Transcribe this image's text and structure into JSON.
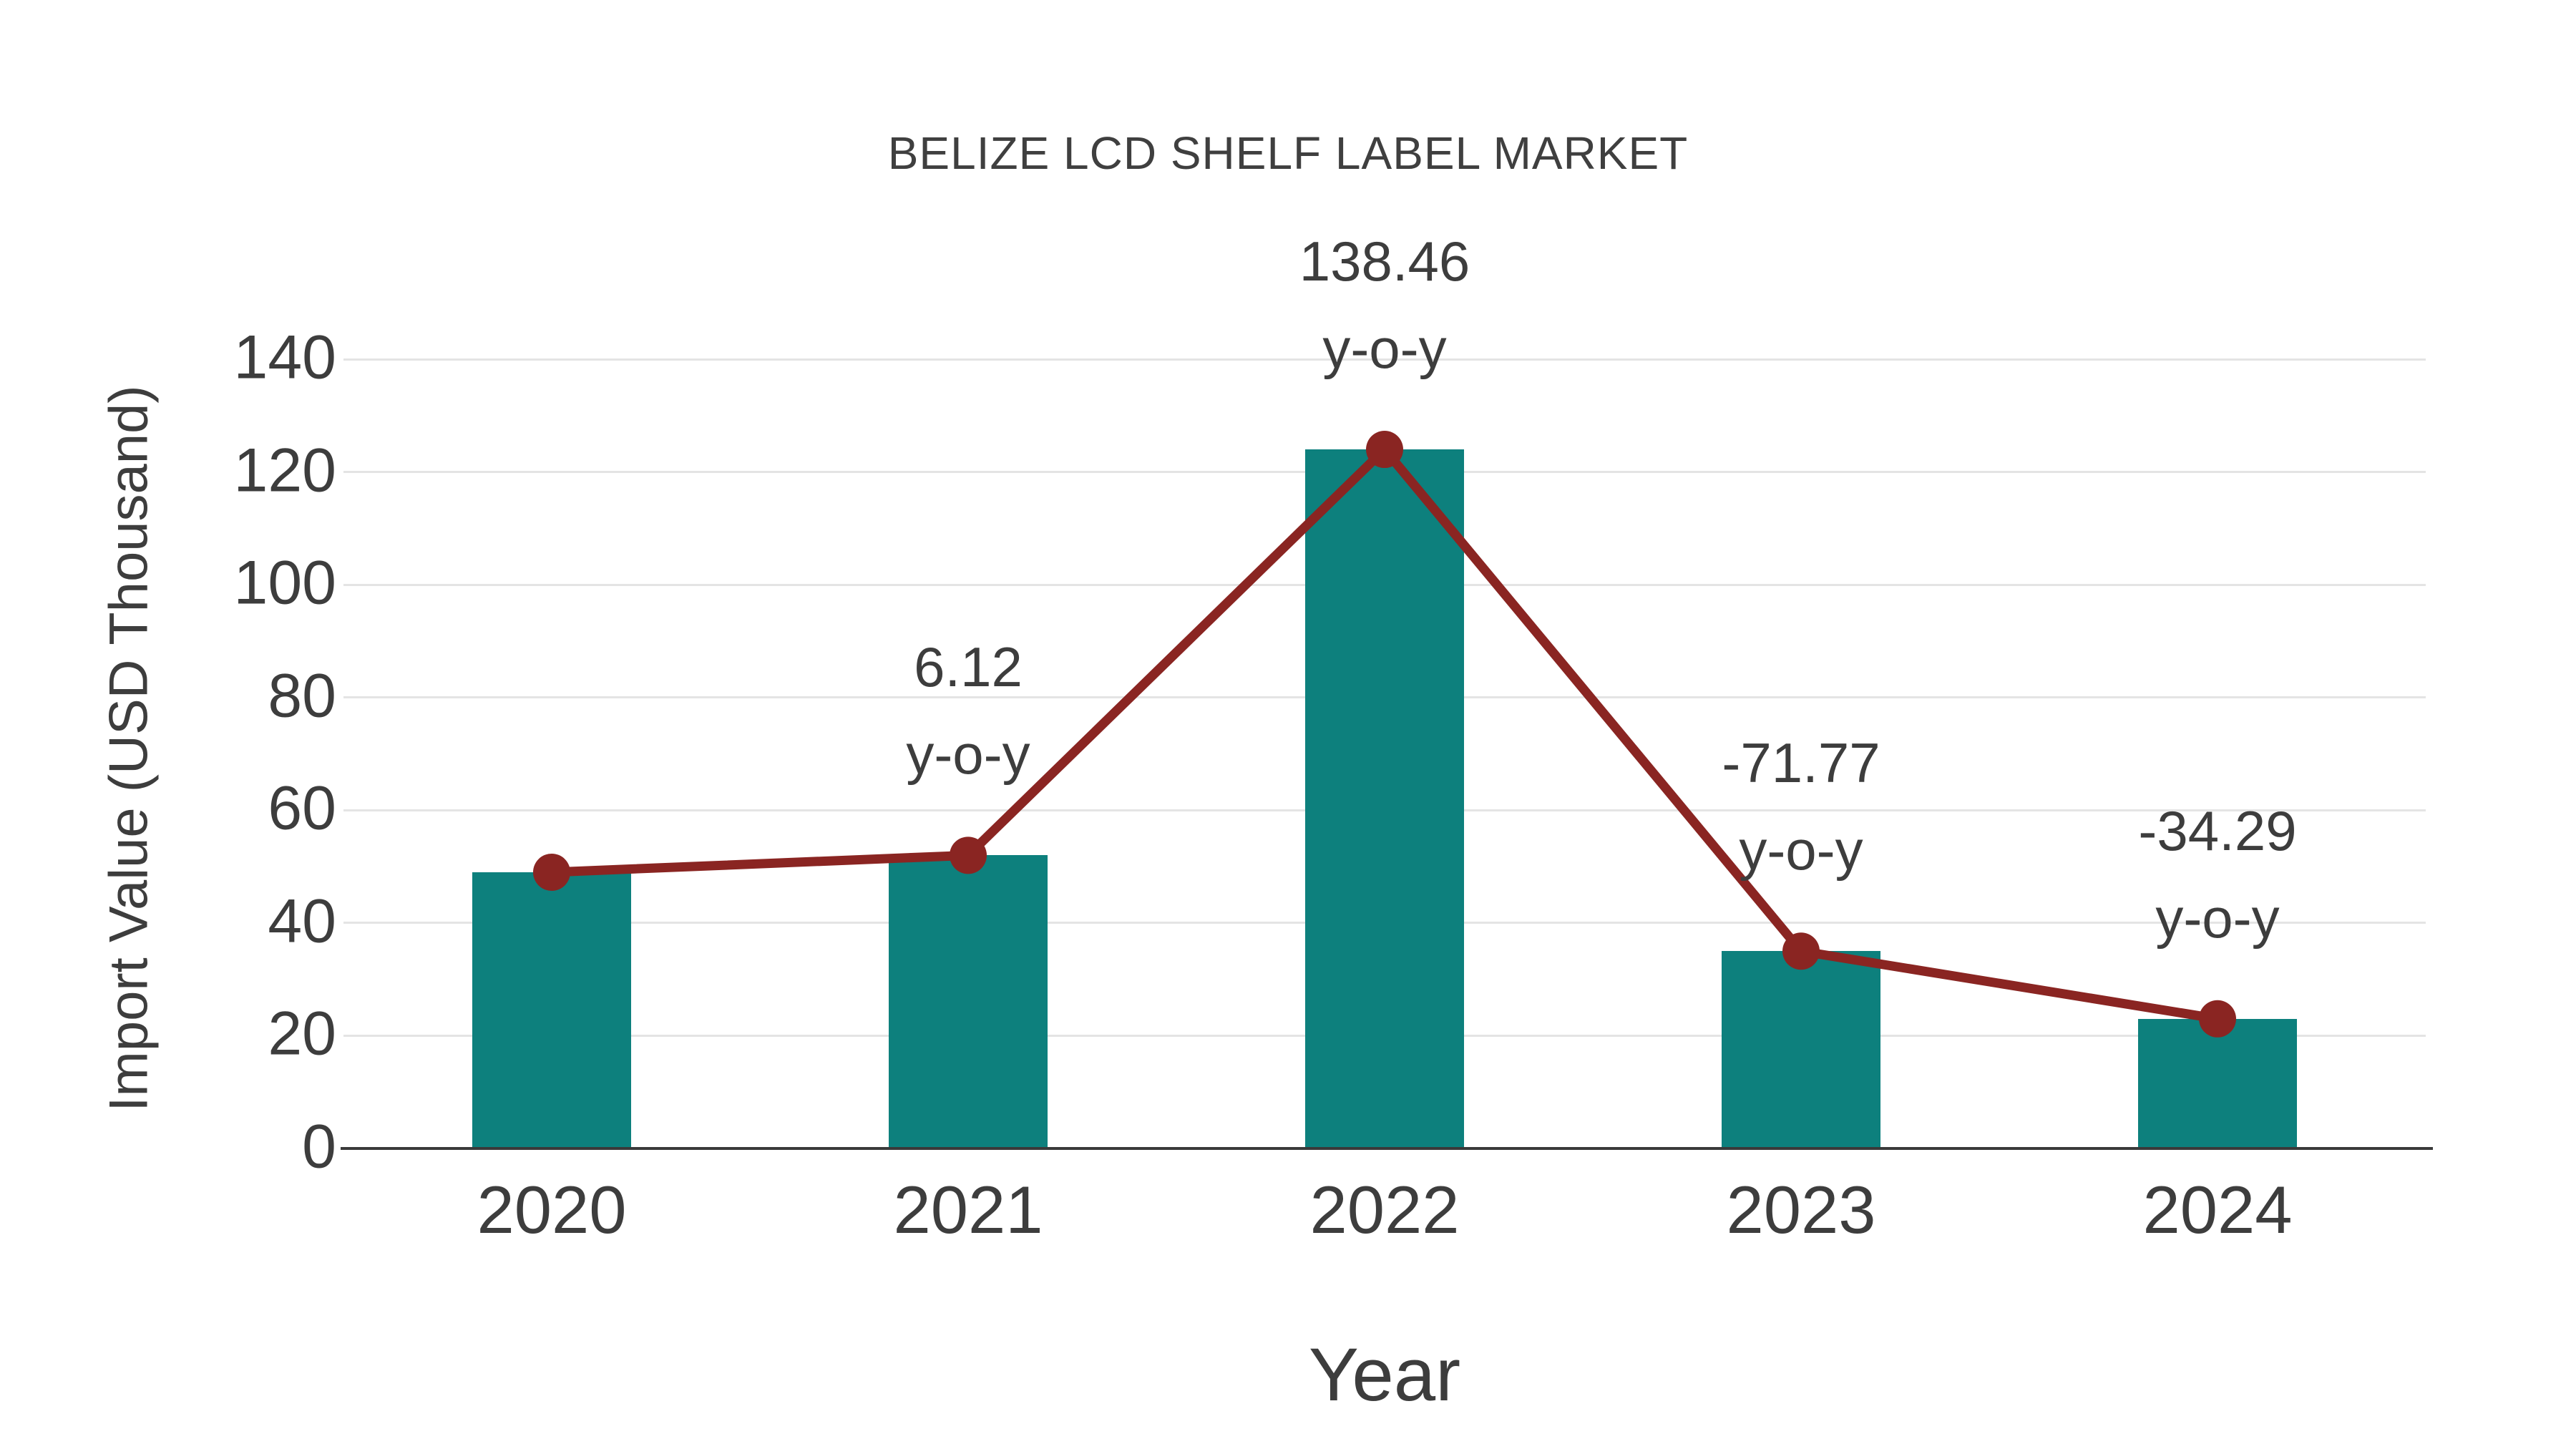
{
  "title": "BELIZE LCD SHELF LABEL MARKET",
  "chart_data": {
    "type": "bar",
    "title": "BELIZE LCD SHELF LABEL MARKET",
    "xlabel": "Year",
    "ylabel": "Import Value (USD Thousand)",
    "categories": [
      "2020",
      "2021",
      "2022",
      "2023",
      "2024"
    ],
    "series": [
      {
        "name": "Import Value bars",
        "type": "bar",
        "values": [
          49,
          52,
          124,
          35,
          23
        ]
      },
      {
        "name": "Import Value trend line",
        "type": "line",
        "values": [
          49,
          52,
          124,
          35,
          23
        ]
      }
    ],
    "annotations": [
      {
        "category": "2021",
        "line1": "6.12",
        "line2": "y-o-y"
      },
      {
        "category": "2022",
        "line1": "138.46",
        "line2": "y-o-y"
      },
      {
        "category": "2023",
        "line1": "-71.77",
        "line2": "y-o-y"
      },
      {
        "category": "2024",
        "line1": "-34.29",
        "line2": "y-o-y"
      }
    ],
    "yticks": [
      0,
      20,
      40,
      60,
      80,
      100,
      120,
      140
    ],
    "ylim": [
      0,
      140
    ],
    "grid": true,
    "legend": false
  },
  "colors": {
    "bar_fill": "#0d807d",
    "line_stroke": "#8a2522",
    "marker_fill": "#8a2522",
    "gridline": "#e4e4e4",
    "axis_line": "#3a3a3a",
    "tick_text": "#3d3d3d",
    "title_text": "#3f3f3f",
    "background": "#ffffff"
  }
}
